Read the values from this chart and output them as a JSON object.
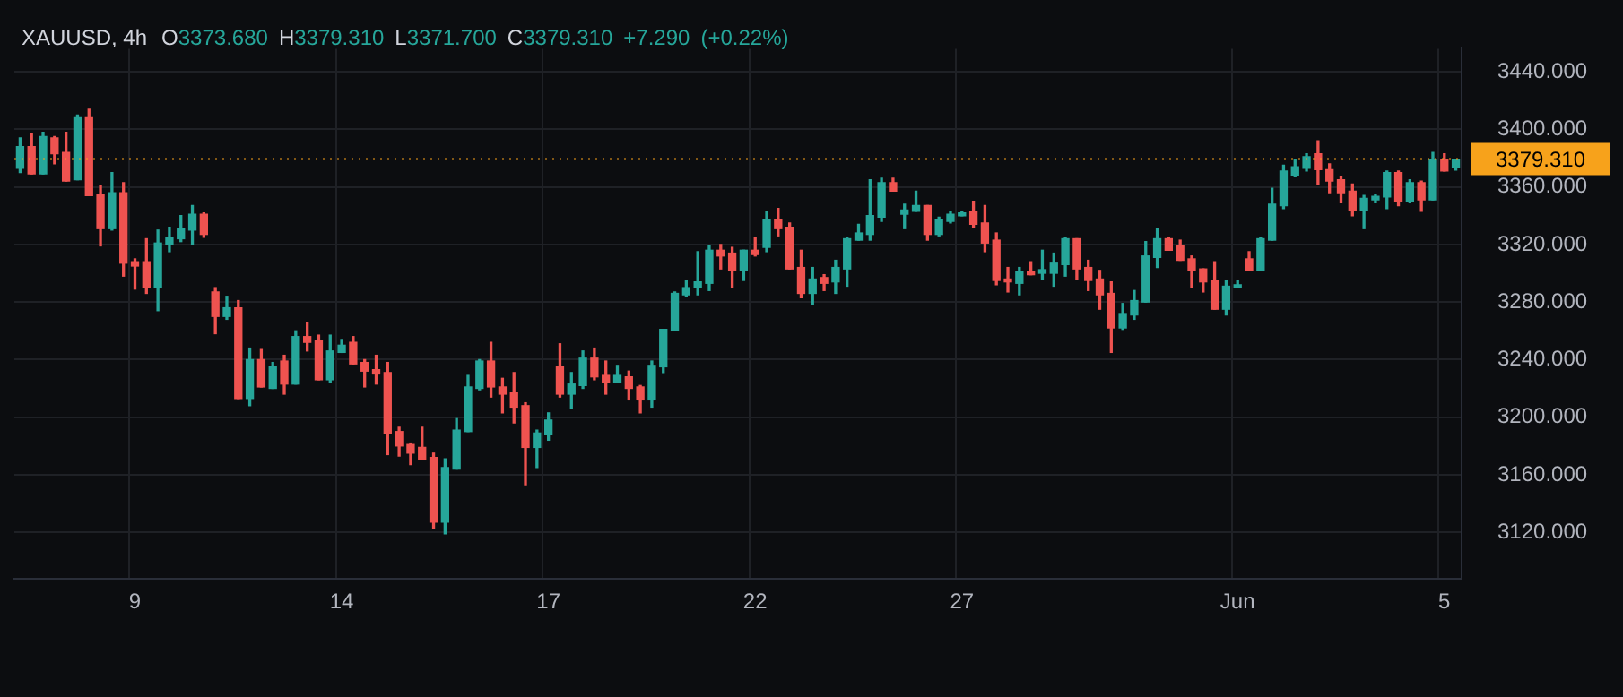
{
  "chart_data": {
    "type": "candlestick",
    "title": "XAUUSD, 4h",
    "subtitle": "O3373.680 H3379.310 L3371.700 C3379.310 +7.290 (+0.22%)",
    "categories": [
      null,
      null,
      null,
      null,
      null,
      null,
      null,
      null,
      null,
      null,
      "9",
      null,
      null,
      null,
      null,
      null,
      null,
      null,
      null,
      null,
      null,
      null,
      null,
      null,
      null,
      null,
      null,
      null,
      "14",
      null,
      null,
      null,
      null,
      null,
      null,
      null,
      null,
      null,
      null,
      null,
      null,
      null,
      null,
      null,
      null,
      null,
      "17",
      null,
      null,
      null,
      null,
      null,
      null,
      null,
      null,
      null,
      null,
      null,
      null,
      null,
      null,
      null,
      null,
      null,
      "22",
      null,
      null,
      null,
      null,
      null,
      null,
      null,
      null,
      null,
      null,
      null,
      null,
      null,
      null,
      null,
      null,
      null,
      "27",
      null,
      null,
      null,
      null,
      null,
      null,
      null,
      null,
      null,
      null,
      null,
      null,
      null,
      null,
      null,
      null,
      null,
      null,
      null,
      null,
      null,
      null,
      null,
      "Jun",
      null,
      null,
      null,
      null,
      null,
      null,
      null,
      null,
      null,
      null,
      null,
      null,
      null,
      null,
      null,
      null,
      null,
      "5",
      null
    ],
    "ohlc": [
      [
        3373,
        3394,
        3370,
        3388
      ],
      [
        3388,
        3397,
        3369,
        3369
      ],
      [
        3369,
        3398,
        3369,
        3395
      ],
      [
        3394,
        3395,
        3376,
        3383
      ],
      [
        3384,
        3398,
        3364,
        3364
      ],
      [
        3365,
        3410,
        3365,
        3408
      ],
      [
        3408,
        3414,
        3354,
        3354
      ],
      [
        3355,
        3361,
        3319,
        3331
      ],
      [
        3331,
        3370,
        3330,
        3356
      ],
      [
        3356,
        3363,
        3298,
        3307
      ],
      [
        3308,
        3310,
        3289,
        3305
      ],
      [
        3308,
        3324,
        3286,
        3290
      ],
      [
        3290,
        3330,
        3274,
        3321
      ],
      [
        3320,
        3332,
        3315,
        3325
      ],
      [
        3324,
        3340,
        3322,
        3331
      ],
      [
        3330,
        3347,
        3320,
        3341
      ],
      [
        3341,
        3342,
        3325,
        3327
      ],
      [
        3287,
        3290,
        3258,
        3270
      ],
      [
        3270,
        3284,
        3268,
        3276
      ],
      [
        3276,
        3281,
        3213,
        3213
      ],
      [
        3213,
        3248,
        3208,
        3240
      ],
      [
        3240,
        3247,
        3221,
        3221
      ],
      [
        3220,
        3238,
        3220,
        3235
      ],
      [
        3239,
        3243,
        3216,
        3223
      ],
      [
        3223,
        3260,
        3223,
        3256
      ],
      [
        3256,
        3266,
        3246,
        3252
      ],
      [
        3253,
        3257,
        3226,
        3226
      ],
      [
        3226,
        3257,
        3224,
        3246
      ],
      [
        3245,
        3254,
        3245,
        3250
      ],
      [
        3252,
        3256,
        3237,
        3237
      ],
      [
        3238,
        3240,
        3221,
        3232
      ],
      [
        3233,
        3243,
        3223,
        3230
      ],
      [
        3231,
        3238,
        3174,
        3189
      ],
      [
        3190,
        3193,
        3173,
        3180
      ],
      [
        3181,
        3182,
        3167,
        3175
      ],
      [
        3179,
        3193,
        3171,
        3171
      ],
      [
        3172,
        3175,
        3123,
        3127
      ],
      [
        3127,
        3171,
        3119,
        3165
      ],
      [
        3164,
        3199,
        3164,
        3191
      ],
      [
        3190,
        3229,
        3190,
        3221
      ],
      [
        3220,
        3240,
        3219,
        3239
      ],
      [
        3239,
        3252,
        3214,
        3221
      ],
      [
        3221,
        3227,
        3203,
        3216
      ],
      [
        3217,
        3231,
        3196,
        3207
      ],
      [
        3208,
        3210,
        3153,
        3179
      ],
      [
        3179,
        3191,
        3165,
        3189
      ],
      [
        3188,
        3203,
        3184,
        3198
      ],
      [
        3235,
        3251,
        3214,
        3216
      ],
      [
        3216,
        3231,
        3206,
        3223
      ],
      [
        3222,
        3246,
        3220,
        3241
      ],
      [
        3241,
        3248,
        3226,
        3228
      ],
      [
        3229,
        3239,
        3216,
        3224
      ],
      [
        3224,
        3236,
        3224,
        3229
      ],
      [
        3228,
        3232,
        3212,
        3220
      ],
      [
        3221,
        3222,
        3203,
        3212
      ],
      [
        3212,
        3239,
        3207,
        3236
      ],
      [
        3235,
        3261,
        3231,
        3261
      ],
      [
        3260,
        3287,
        3260,
        3286
      ],
      [
        3285,
        3295,
        3284,
        3290
      ],
      [
        3290,
        3315,
        3285,
        3294
      ],
      [
        3293,
        3319,
        3288,
        3316
      ],
      [
        3316,
        3320,
        3303,
        3312
      ],
      [
        3314,
        3318,
        3290,
        3302
      ],
      [
        3302,
        3316,
        3295,
        3316
      ],
      [
        3316,
        3325,
        3312,
        3313
      ],
      [
        3318,
        3343,
        3315,
        3337
      ],
      [
        3337,
        3345,
        3326,
        3331
      ],
      [
        3332,
        3335,
        3303,
        3303
      ],
      [
        3304,
        3316,
        3283,
        3286
      ],
      [
        3286,
        3304,
        3278,
        3296
      ],
      [
        3297,
        3299,
        3288,
        3293
      ],
      [
        3294,
        3309,
        3286,
        3304
      ],
      [
        3303,
        3325,
        3291,
        3324
      ],
      [
        3323,
        3334,
        3323,
        3328
      ],
      [
        3327,
        3365,
        3323,
        3340
      ],
      [
        3339,
        3366,
        3336,
        3363
      ],
      [
        3363,
        3366,
        3357,
        3357
      ],
      [
        3341,
        3348,
        3331,
        3344
      ],
      [
        3343,
        3357,
        3343,
        3347
      ],
      [
        3347,
        3347,
        3323,
        3327
      ],
      [
        3327,
        3339,
        3326,
        3337
      ],
      [
        3336,
        3343,
        3335,
        3341
      ],
      [
        3340,
        3343,
        3340,
        3342
      ],
      [
        3343,
        3350,
        3332,
        3334
      ],
      [
        3335,
        3347,
        3315,
        3321
      ],
      [
        3323,
        3328,
        3292,
        3295
      ],
      [
        3296,
        3304,
        3287,
        3294
      ],
      [
        3293,
        3304,
        3285,
        3301
      ],
      [
        3301,
        3308,
        3299,
        3299
      ],
      [
        3300,
        3316,
        3296,
        3302.5
      ],
      [
        3300,
        3314,
        3291,
        3307
      ],
      [
        3306,
        3325,
        3298,
        3324
      ],
      [
        3324,
        3324,
        3296,
        3303
      ],
      [
        3304,
        3309,
        3288,
        3295
      ],
      [
        3296,
        3302,
        3275,
        3285
      ],
      [
        3286,
        3294,
        3245,
        3262
      ],
      [
        3262,
        3279,
        3261,
        3272
      ],
      [
        3271,
        3288,
        3268,
        3281
      ],
      [
        3280,
        3322,
        3280,
        3312
      ],
      [
        3311,
        3331,
        3304,
        3324
      ],
      [
        3324,
        3325,
        3316,
        3316
      ],
      [
        3319,
        3323,
        3309,
        3309
      ],
      [
        3310,
        3312,
        3290,
        3302
      ],
      [
        3303,
        3303,
        3287,
        3294
      ],
      [
        3295,
        3308,
        3275,
        3275
      ],
      [
        3275,
        3295,
        3271,
        3291
      ],
      [
        3290,
        3295,
        3290,
        3292
      ],
      [
        3310,
        3315,
        3302,
        3302
      ],
      [
        3302,
        3325,
        3302,
        3324
      ],
      [
        3323,
        3359,
        3323,
        3348
      ],
      [
        3347,
        3375,
        3345,
        3371
      ],
      [
        3368,
        3379,
        3367,
        3374
      ],
      [
        3373,
        3383,
        3371,
        3381
      ],
      [
        3383,
        3392,
        3362,
        3372
      ],
      [
        3372,
        3376,
        3356,
        3364
      ],
      [
        3365,
        3367,
        3349,
        3356
      ],
      [
        3357,
        3362,
        3340,
        3344
      ],
      [
        3344,
        3354,
        3331,
        3352
      ],
      [
        3351,
        3355,
        3349,
        3353.5
      ],
      [
        3353,
        3371,
        3345,
        3370
      ],
      [
        3370,
        3371,
        3347,
        3350
      ],
      [
        3350,
        3365,
        3349,
        3363
      ],
      [
        3363,
        3364,
        3343,
        3351
      ],
      [
        3351,
        3384,
        3351,
        3379
      ],
      [
        3379,
        3383,
        3371,
        3371
      ],
      [
        3373.68,
        3379.31,
        3371.7,
        3379.31
      ]
    ],
    "colors": [
      "#26a69a",
      "#ef5350",
      "#26a69a",
      "#ef5350",
      "#ef5350",
      "#26a69a",
      "#ef5350",
      "#ef5350",
      "#26a69a",
      "#ef5350",
      "#ef5350",
      "#ef5350",
      "#26a69a",
      "#26a69a",
      "#26a69a",
      "#26a69a",
      "#ef5350",
      "#ef5350",
      "#26a69a",
      "#ef5350",
      "#26a69a",
      "#ef5350",
      "#26a69a",
      "#ef5350",
      "#26a69a",
      "#ef5350",
      "#ef5350",
      "#26a69a",
      "#26a69a",
      "#ef5350",
      "#ef5350",
      "#ef5350",
      "#ef5350",
      "#ef5350",
      "#ef5350",
      "#ef5350",
      "#ef5350",
      "#26a69a",
      "#26a69a",
      "#26a69a",
      "#26a69a",
      "#ef5350",
      "#ef5350",
      "#ef5350",
      "#ef5350",
      "#26a69a",
      "#26a69a",
      "#ef5350",
      "#26a69a",
      "#26a69a",
      "#ef5350",
      "#ef5350",
      "#26a69a",
      "#ef5350",
      "#ef5350",
      "#26a69a",
      "#26a69a",
      "#26a69a",
      "#26a69a",
      "#26a69a",
      "#26a69a",
      "#ef5350",
      "#ef5350",
      "#26a69a",
      "#ef5350",
      "#26a69a",
      "#ef5350",
      "#ef5350",
      "#ef5350",
      "#26a69a",
      "#ef5350",
      "#26a69a",
      "#26a69a",
      "#26a69a",
      "#26a69a",
      "#26a69a",
      "#ef5350",
      "#26a69a",
      "#26a69a",
      "#ef5350",
      "#26a69a",
      "#26a69a",
      "#26a69a",
      "#ef5350",
      "#ef5350",
      "#ef5350",
      "#ef5350",
      "#26a69a",
      "#ef5350",
      "#26a69a",
      "#26a69a",
      "#26a69a",
      "#ef5350",
      "#ef5350",
      "#ef5350",
      "#ef5350",
      "#26a69a",
      "#26a69a",
      "#26a69a",
      "#26a69a",
      "#ef5350",
      "#ef5350",
      "#ef5350",
      "#ef5350",
      "#ef5350",
      "#26a69a",
      "#26a69a",
      "#ef5350",
      "#26a69a",
      "#26a69a",
      "#26a69a",
      "#26a69a",
      "#26a69a",
      "#ef5350",
      "#ef5350",
      "#ef5350",
      "#ef5350",
      "#26a69a",
      "#26a69a",
      "#26a69a",
      "#ef5350",
      "#26a69a",
      "#ef5350",
      "#26a69a",
      "#ef5350",
      "#26a69a"
    ],
    "ylim": [
      3088,
      3456
    ],
    "yticks": [
      {
        "value": 3120,
        "label": "3120.000"
      },
      {
        "value": 3160,
        "label": "3160.000"
      },
      {
        "value": 3200,
        "label": "3200.000"
      },
      {
        "value": 3240,
        "label": "3240.000"
      },
      {
        "value": 3280,
        "label": "3280.000"
      },
      {
        "value": 3320,
        "label": "3320.000"
      },
      {
        "value": 3360,
        "label": "3360.000"
      },
      {
        "value": 3400,
        "label": "3400.000"
      },
      {
        "value": 3440,
        "label": "3440.000"
      }
    ],
    "ref_lines": [
      {
        "axis": "y",
        "value": 3379.31,
        "label": "3379.310",
        "color": "#f7a21b",
        "line_style": "dotted"
      }
    ],
    "grid": true
  }
}
